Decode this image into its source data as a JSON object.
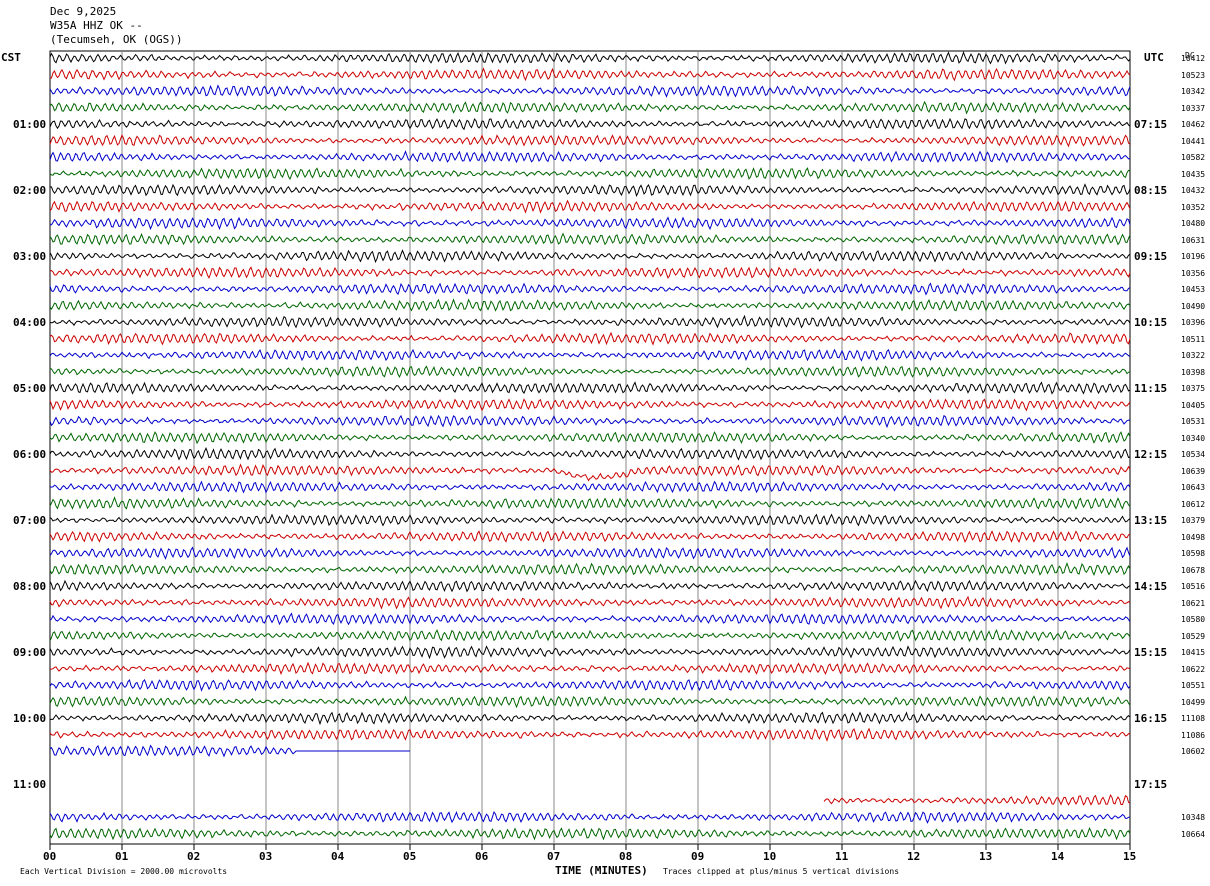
{
  "header": {
    "date": "Dec 9,2025",
    "station": "W35A HHZ OK --",
    "location": "(Tecumseh, OK (OGS))"
  },
  "left_tz": "CST",
  "right_tz": "UTC",
  "dc_header": "DC",
  "footer": {
    "scale_note": "Each Vertical Division = 2000.00 microvolts",
    "xlabel": "TIME (MINUTES)",
    "clip_note": "Traces clipped at plus/minus 5 vertical divisions"
  },
  "colors": [
    "#000000",
    "#cc0000",
    "#0000cc",
    "#006600"
  ],
  "chart_data": {
    "type": "line",
    "title": "W35A HHZ OK --",
    "xlabel": "TIME (MINUTES)",
    "ylabel": "",
    "x_ticks": [
      "00",
      "01",
      "02",
      "03",
      "04",
      "05",
      "06",
      "07",
      "08",
      "09",
      "10",
      "11",
      "12",
      "13",
      "14",
      "15"
    ],
    "xlim": [
      0,
      15
    ],
    "grid": true,
    "traces_per_hour": 4,
    "hour_labels_cst": [
      "01:00",
      "02:00",
      "03:00",
      "04:00",
      "05:00",
      "06:00",
      "07:00",
      "08:00",
      "09:00",
      "10:00",
      "11:00"
    ],
    "hour_labels_utc": [
      "07:15",
      "08:15",
      "09:15",
      "10:15",
      "11:15",
      "12:15",
      "13:15",
      "14:15",
      "15:15",
      "16:15",
      "17:15"
    ],
    "dc_offsets": [
      "10412",
      "10523",
      "10342",
      "10337",
      "10462",
      "10441",
      "10582",
      "10435",
      "10432",
      "10352",
      "10480",
      "10631",
      "10196",
      "10356",
      "10453",
      "10490",
      "10396",
      "10511",
      "10322",
      "10398",
      "10375",
      "10405",
      "10531",
      "10340",
      "10534",
      "10639",
      "10643",
      "10612",
      "10379",
      "10498",
      "10598",
      "10678",
      "10516",
      "10621",
      "10580",
      "10529",
      "10415",
      "10622",
      "10551",
      "10499",
      "11108",
      "11086",
      "10602",
      "",
      "",
      "",
      "10348",
      "10664"
    ],
    "trace_extents_min": [
      [
        0,
        15
      ],
      [
        0,
        15
      ],
      [
        0,
        15
      ],
      [
        0,
        15
      ],
      [
        0,
        15
      ],
      [
        0,
        15
      ],
      [
        0,
        15
      ],
      [
        0,
        15
      ],
      [
        0,
        15
      ],
      [
        0,
        15
      ],
      [
        0,
        15
      ],
      [
        0,
        15
      ],
      [
        0,
        15
      ],
      [
        0,
        15
      ],
      [
        0,
        15
      ],
      [
        0,
        15
      ],
      [
        0,
        15
      ],
      [
        0,
        15
      ],
      [
        0,
        15
      ],
      [
        0,
        15
      ],
      [
        0,
        15
      ],
      [
        0,
        15
      ],
      [
        0,
        15
      ],
      [
        0,
        15
      ],
      [
        0,
        15
      ],
      [
        0,
        15
      ],
      [
        0,
        15
      ],
      [
        0,
        15
      ],
      [
        0,
        15
      ],
      [
        0,
        15
      ],
      [
        0,
        15
      ],
      [
        0,
        15
      ],
      [
        0,
        15
      ],
      [
        0,
        15
      ],
      [
        0,
        15
      ],
      [
        0,
        15
      ],
      [
        0,
        15
      ],
      [
        0,
        15
      ],
      [
        0,
        15
      ],
      [
        0,
        15
      ],
      [
        0,
        15
      ],
      [
        0,
        15
      ],
      [
        0,
        5
      ],
      null,
      null,
      [
        10.75,
        15
      ],
      [
        0,
        15
      ],
      [
        0,
        15
      ]
    ]
  }
}
